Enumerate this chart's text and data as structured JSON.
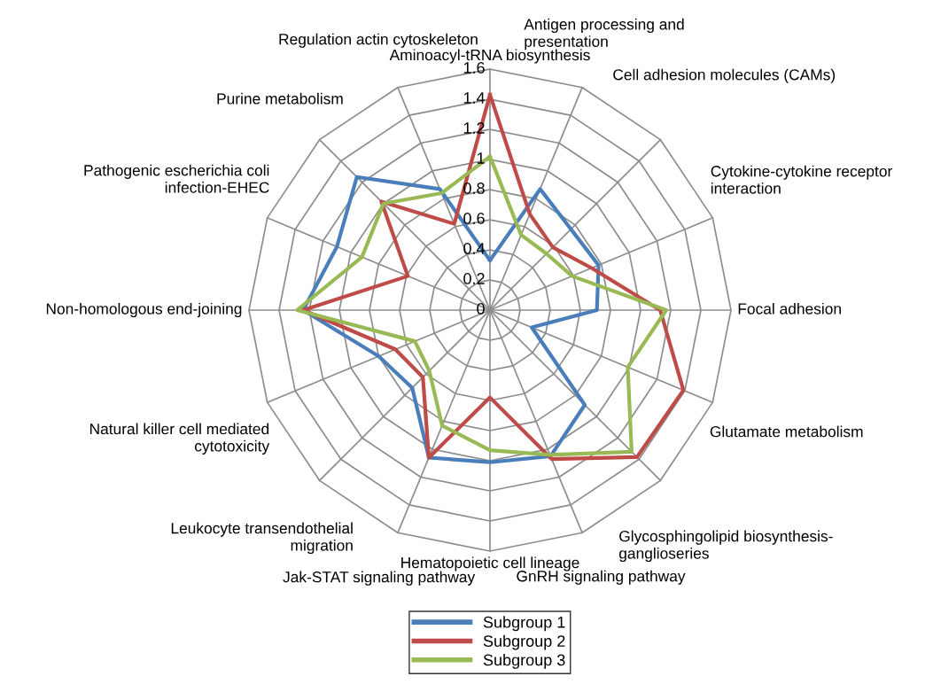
{
  "chart_data": {
    "type": "radar",
    "categories": [
      "Aminoacyl-tRNA biosynthesis",
      "Antigen processing and\npresentation",
      "Cell adhesion molecules (CAMs)",
      "Cytokine-cytokine receptor\ninteraction",
      "Focal adhesion",
      "Glutamate metabolism",
      "Glycosphingolipid biosynthesis-\nganglioseries",
      "GnRH signaling pathway",
      "Hematopoietic cell lineage",
      "Jak-STAT signaling pathway",
      "Leukocyte transendothelial\nmigration",
      "Natural killer cell mediated\ncytotoxicity",
      "Non-homologous end-joining",
      "Pathogenic escherichia coli\ninfection-EHEC",
      "Purine metabolism",
      "Regulation actin cytoskeleton"
    ],
    "series": [
      {
        "name": "Subgroup 1",
        "color": "#4a7ebb",
        "values": [
          0.33,
          0.87,
          0.76,
          0.78,
          0.71,
          0.3,
          0.89,
          1.05,
          1.01,
          1.06,
          0.73,
          0.8,
          1.24,
          1.1,
          1.25,
          0.87
        ]
      },
      {
        "name": "Subgroup 2",
        "color": "#be4b48",
        "values": [
          1.43,
          0.69,
          0.59,
          0.73,
          1.13,
          1.39,
          1.38,
          1.07,
          0.58,
          1.06,
          0.63,
          0.68,
          1.24,
          0.59,
          1.02,
          0.62
        ]
      },
      {
        "name": "Subgroup 3",
        "color": "#98b954",
        "values": [
          1.02,
          0.54,
          0.53,
          0.59,
          1.17,
          0.99,
          1.33,
          1.04,
          0.93,
          0.83,
          0.57,
          0.54,
          1.28,
          0.92,
          1.0,
          0.84
        ]
      }
    ],
    "ylim": [
      0,
      1.6
    ],
    "yticks": [
      0,
      0.2,
      0.4,
      0.6,
      0.8,
      1,
      1.2,
      1.4,
      1.6
    ],
    "grid": true,
    "legend": "bottom",
    "marker": "none",
    "line_style": "solid"
  }
}
